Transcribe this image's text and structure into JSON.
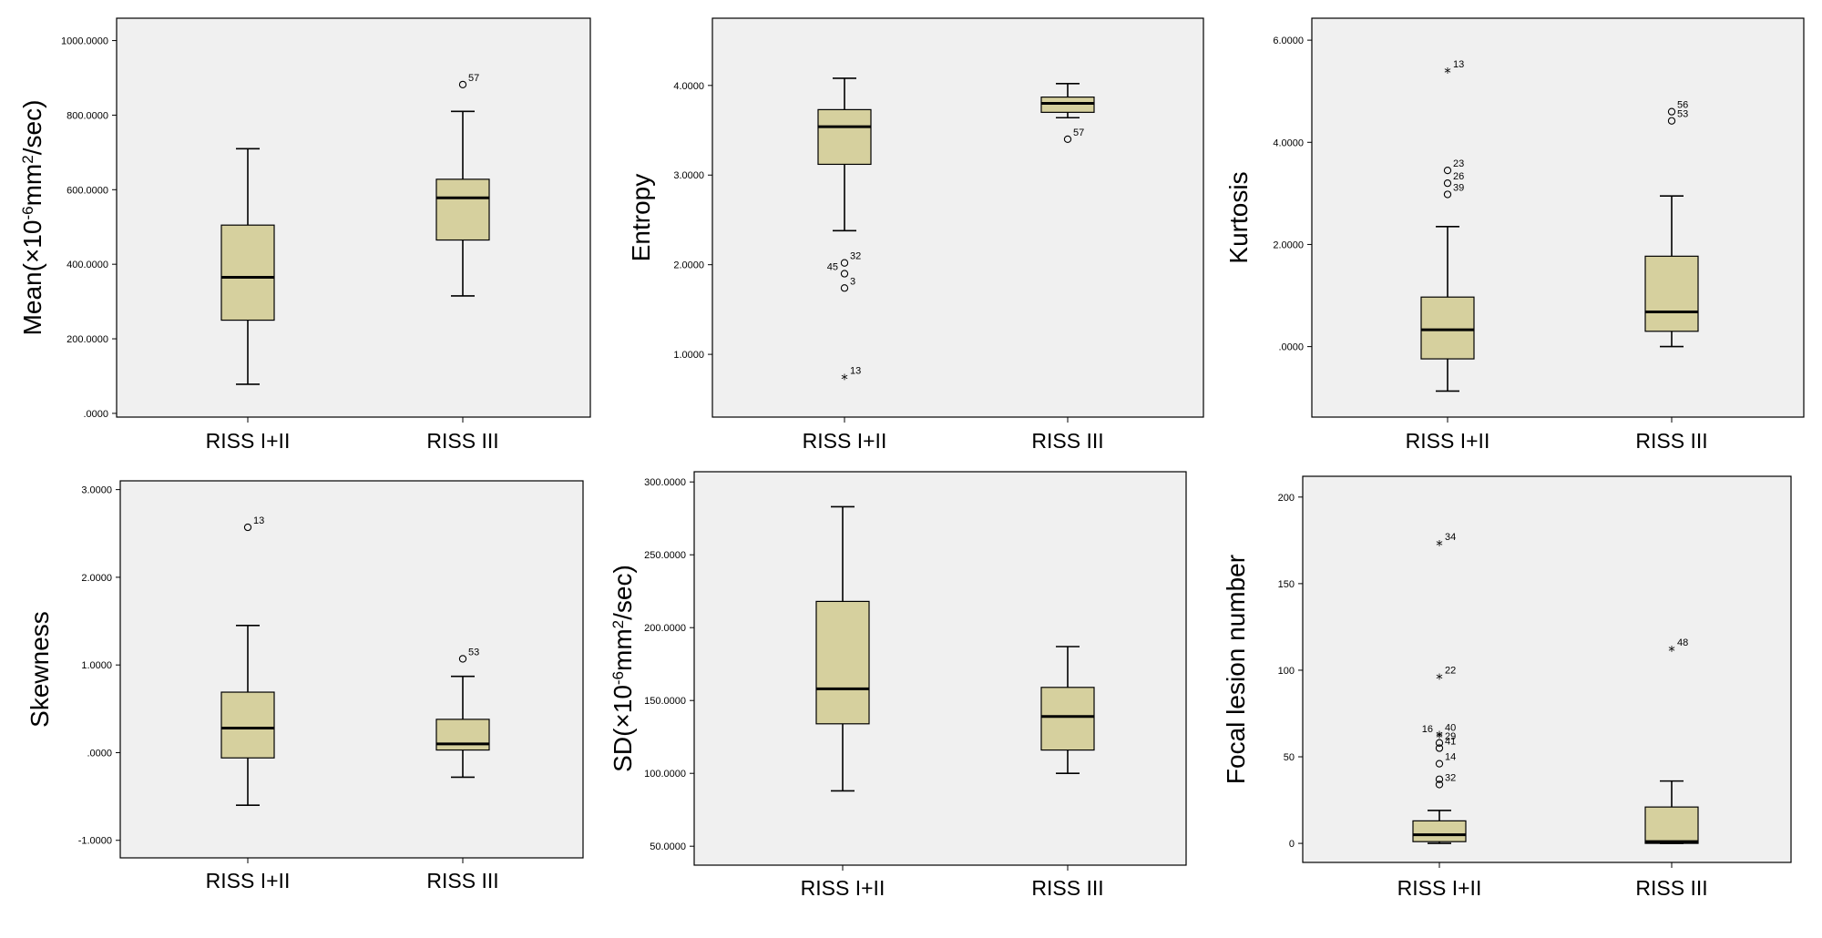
{
  "colors": {
    "plot_bg": "#f0f0f0",
    "box_fill": "#d6d09e",
    "stroke": "#000000"
  },
  "chart_data": [
    {
      "id": "mean",
      "type": "boxplot",
      "ylabel_parts": {
        "pre": "Mean(×10",
        "sup1": "-6",
        "mid": "mm",
        "sup2": "2",
        "post": "/sec)"
      },
      "ylim": [
        -10,
        1060
      ],
      "yticks": [
        0,
        200,
        400,
        600,
        800,
        1000
      ],
      "ytick_labels": [
        ".0000",
        "200.0000",
        "400.0000",
        "600.0000",
        "800.0000",
        "1000.0000"
      ],
      "categories": [
        "RISS I+II",
        "RISS III"
      ],
      "boxes": [
        {
          "category": "RISS I+II",
          "whisker_low": 78,
          "q1": 250,
          "median": 365,
          "q3": 505,
          "whisker_high": 710,
          "outliers": []
        },
        {
          "category": "RISS III",
          "whisker_low": 315,
          "q1": 465,
          "median": 578,
          "q3": 628,
          "whisker_high": 810,
          "outliers": [
            {
              "value": 882,
              "label": "57",
              "marker": "circle"
            }
          ]
        }
      ]
    },
    {
      "id": "entropy",
      "type": "boxplot",
      "ylabel": "Entropy",
      "ylim": [
        0.3,
        4.75
      ],
      "yticks": [
        1,
        2,
        3,
        4
      ],
      "ytick_labels": [
        "1.0000",
        "2.0000",
        "3.0000",
        "4.0000"
      ],
      "categories": [
        "RISS I+II",
        "RISS III"
      ],
      "boxes": [
        {
          "category": "RISS I+II",
          "whisker_low": 2.38,
          "q1": 3.12,
          "median": 3.54,
          "q3": 3.73,
          "whisker_high": 4.08,
          "outliers": [
            {
              "value": 2.02,
              "label": "32",
              "marker": "circle"
            },
            {
              "value": 1.9,
              "label": "45",
              "marker": "circle"
            },
            {
              "value": 1.74,
              "label": "3",
              "marker": "circle"
            },
            {
              "value": 0.74,
              "label": "13",
              "marker": "star"
            }
          ]
        },
        {
          "category": "RISS III",
          "whisker_low": 3.64,
          "q1": 3.7,
          "median": 3.8,
          "q3": 3.87,
          "whisker_high": 4.02,
          "outliers": [
            {
              "value": 3.4,
              "label": "57",
              "marker": "circle"
            }
          ]
        }
      ]
    },
    {
      "id": "kurtosis",
      "type": "boxplot",
      "ylabel": "Kurtosis",
      "ylim": [
        -1.38,
        6.43
      ],
      "yticks": [
        0,
        2,
        4,
        6
      ],
      "ytick_labels": [
        ".0000",
        "2.0000",
        "4.0000",
        "6.0000"
      ],
      "categories": [
        "RISS I+II",
        "RISS III"
      ],
      "boxes": [
        {
          "category": "RISS I+II",
          "whisker_low": -0.87,
          "q1": -0.24,
          "median": 0.33,
          "q3": 0.97,
          "whisker_high": 2.35,
          "outliers": [
            {
              "value": 5.4,
              "label": "13",
              "marker": "star"
            },
            {
              "value": 3.45,
              "label": "23",
              "marker": "circle"
            },
            {
              "value": 3.2,
              "label": "26",
              "marker": "circle"
            },
            {
              "value": 2.98,
              "label": "39",
              "marker": "circle"
            }
          ]
        },
        {
          "category": "RISS III",
          "whisker_low": 0.0,
          "q1": 0.3,
          "median": 0.68,
          "q3": 1.77,
          "whisker_high": 2.95,
          "outliers": [
            {
              "value": 4.6,
              "label": "56",
              "marker": "circle"
            },
            {
              "value": 4.42,
              "label": "53",
              "marker": "circle"
            }
          ]
        }
      ]
    },
    {
      "id": "skewness",
      "type": "boxplot",
      "ylabel": "Skewness",
      "ylim": [
        -1.2,
        3.1
      ],
      "yticks": [
        -1,
        0,
        1,
        2,
        3
      ],
      "ytick_labels": [
        "-1.0000",
        ".0000",
        "1.0000",
        "2.0000",
        "3.0000"
      ],
      "categories": [
        "RISS I+II",
        "RISS III"
      ],
      "boxes": [
        {
          "category": "RISS I+II",
          "whisker_low": -0.6,
          "q1": -0.06,
          "median": 0.28,
          "q3": 0.69,
          "whisker_high": 1.45,
          "outliers": [
            {
              "value": 2.57,
              "label": "13",
              "marker": "circle"
            }
          ]
        },
        {
          "category": "RISS III",
          "whisker_low": -0.28,
          "q1": 0.03,
          "median": 0.1,
          "q3": 0.38,
          "whisker_high": 0.87,
          "outliers": [
            {
              "value": 1.07,
              "label": "53",
              "marker": "circle"
            }
          ]
        }
      ]
    },
    {
      "id": "sd",
      "type": "boxplot",
      "ylabel_parts": {
        "pre": "SD(×10",
        "sup1": "-6",
        "mid": "mm",
        "sup2": "2",
        "post": "/sec)"
      },
      "ylim": [
        37,
        307
      ],
      "yticks": [
        50,
        100,
        150,
        200,
        250,
        300
      ],
      "ytick_labels": [
        "50.0000",
        "100.0000",
        "150.0000",
        "200.0000",
        "250.0000",
        "300.0000"
      ],
      "categories": [
        "RISS I+II",
        "RISS III"
      ],
      "boxes": [
        {
          "category": "RISS I+II",
          "whisker_low": 88,
          "q1": 134,
          "median": 158,
          "q3": 218,
          "whisker_high": 283,
          "outliers": []
        },
        {
          "category": "RISS III",
          "whisker_low": 100,
          "q1": 116,
          "median": 139,
          "q3": 159,
          "whisker_high": 187,
          "outliers": []
        }
      ]
    },
    {
      "id": "focal",
      "type": "boxplot",
      "ylabel": "Focal lesion number",
      "ylim": [
        -11,
        212
      ],
      "yticks": [
        0,
        50,
        100,
        150,
        200
      ],
      "ytick_labels": [
        "0",
        "50",
        "100",
        "150",
        "200"
      ],
      "categories": [
        "RISS I+II",
        "RISS III"
      ],
      "boxes": [
        {
          "category": "RISS I+II",
          "whisker_low": 0,
          "q1": 1,
          "median": 5,
          "q3": 13,
          "whisker_high": 19,
          "outliers": [
            {
              "value": 173,
              "label": "34",
              "marker": "star"
            },
            {
              "value": 96,
              "label": "22",
              "marker": "star"
            },
            {
              "value": 63,
              "label": "40",
              "marker": "star"
            },
            {
              "value": 62,
              "label": "16",
              "marker": "star"
            },
            {
              "value": 58,
              "label": "29",
              "marker": "circle"
            },
            {
              "value": 55,
              "label": "41",
              "marker": "circle"
            },
            {
              "value": 46,
              "label": "14",
              "marker": "circle"
            },
            {
              "value": 37,
              "label": "",
              "marker": "circle"
            },
            {
              "value": 34,
              "label": "32",
              "marker": "circle"
            }
          ]
        },
        {
          "category": "RISS III",
          "whisker_low": 0,
          "q1": 0,
          "median": 1,
          "q3": 21,
          "whisker_high": 36,
          "outliers": [
            {
              "value": 112,
              "label": "48",
              "marker": "star"
            }
          ]
        }
      ]
    }
  ]
}
